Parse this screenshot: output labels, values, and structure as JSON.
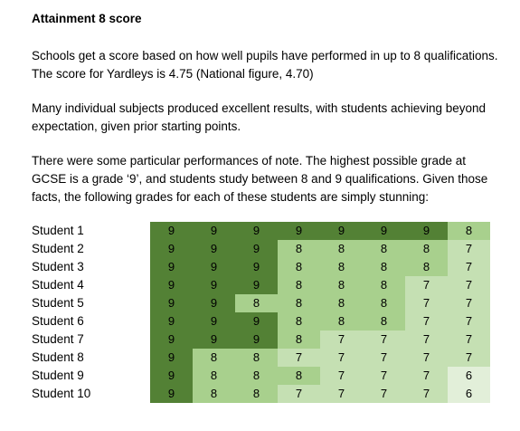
{
  "heading": "Attainment 8 score",
  "paragraphs": [
    "Schools get a score based on how well pupils have performed in up to 8 qualifications. The score for Yardleys is 4.75 (National figure, 4.70)",
    "Many individual subjects produced excellent results, with students achieving beyond expectation, given prior starting points.",
    "There were some particular performances of note. The highest possible grade at GCSE is a grade ‘9’, and students study between 8 and 9 qualifications. Given those facts, the following grades for each of these students are simply stunning:"
  ],
  "grade_colors": {
    "9": "#538135",
    "8": "#a8d08d",
    "7": "#c5e0b3",
    "6": "#e2efd9"
  },
  "students": [
    {
      "name": "Student 1",
      "grades": [
        "9",
        "9",
        "9",
        "9",
        "9",
        "9",
        "9",
        "8"
      ]
    },
    {
      "name": "Student 2",
      "grades": [
        "9",
        "9",
        "9",
        "8",
        "8",
        "8",
        "8",
        "7"
      ]
    },
    {
      "name": "Student 3",
      "grades": [
        "9",
        "9",
        "9",
        "8",
        "8",
        "8",
        "8",
        "7"
      ]
    },
    {
      "name": "Student 4",
      "grades": [
        "9",
        "9",
        "9",
        "8",
        "8",
        "8",
        "7",
        "7"
      ]
    },
    {
      "name": "Student 5",
      "grades": [
        "9",
        "9",
        "8",
        "8",
        "8",
        "8",
        "7",
        "7"
      ]
    },
    {
      "name": "Student 6",
      "grades": [
        "9",
        "9",
        "9",
        "8",
        "8",
        "8",
        "7",
        "7"
      ]
    },
    {
      "name": "Student 7",
      "grades": [
        "9",
        "9",
        "9",
        "8",
        "7",
        "7",
        "7",
        "7"
      ]
    },
    {
      "name": "Student 8",
      "grades": [
        "9",
        "8",
        "8",
        "7",
        "7",
        "7",
        "7",
        "7"
      ]
    },
    {
      "name": "Student 9",
      "grades": [
        "9",
        "8",
        "8",
        "8",
        "7",
        "7",
        "7",
        "6"
      ]
    },
    {
      "name": "Student 10",
      "grades": [
        "9",
        "8",
        "8",
        "7",
        "7",
        "7",
        "7",
        "6"
      ]
    }
  ]
}
